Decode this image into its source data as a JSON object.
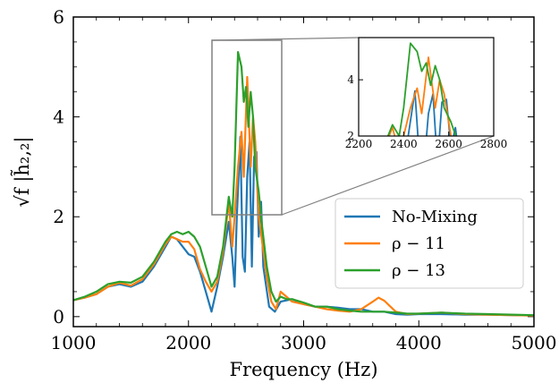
{
  "chart_data": {
    "type": "line",
    "xlabel": "Frequency (Hz)",
    "ylabel": "√f |h̃₂,₂|",
    "xlim": [
      1000,
      5000
    ],
    "ylim": [
      -0.2,
      6
    ],
    "x_ticks": [
      "1000",
      "2000",
      "3000",
      "4000",
      "5000"
    ],
    "y_ticks": [
      "0",
      "2",
      "4",
      "6"
    ],
    "legend_position": "lower-right",
    "series": [
      {
        "name": "No-Mixing",
        "color": "#1f77b4",
        "points": [
          [
            1000,
            0.33
          ],
          [
            1100,
            0.38
          ],
          [
            1200,
            0.45
          ],
          [
            1300,
            0.6
          ],
          [
            1400,
            0.65
          ],
          [
            1500,
            0.6
          ],
          [
            1600,
            0.7
          ],
          [
            1700,
            1.0
          ],
          [
            1800,
            1.4
          ],
          [
            1850,
            1.6
          ],
          [
            1900,
            1.55
          ],
          [
            1950,
            1.4
          ],
          [
            2000,
            1.25
          ],
          [
            2050,
            1.2
          ],
          [
            2100,
            0.9
          ],
          [
            2150,
            0.5
          ],
          [
            2200,
            0.1
          ],
          [
            2250,
            0.6
          ],
          [
            2300,
            1.2
          ],
          [
            2350,
            1.9
          ],
          [
            2380,
            1.2
          ],
          [
            2400,
            0.6
          ],
          [
            2420,
            2.0
          ],
          [
            2450,
            3.6
          ],
          [
            2470,
            1.2
          ],
          [
            2490,
            0.9
          ],
          [
            2510,
            2.8
          ],
          [
            2530,
            3.5
          ],
          [
            2550,
            1.0
          ],
          [
            2570,
            3.2
          ],
          [
            2590,
            3.3
          ],
          [
            2610,
            1.6
          ],
          [
            2630,
            2.3
          ],
          [
            2650,
            1.0
          ],
          [
            2700,
            0.2
          ],
          [
            2750,
            0.1
          ],
          [
            2800,
            0.3
          ],
          [
            2900,
            0.35
          ],
          [
            3000,
            0.25
          ],
          [
            3100,
            0.2
          ],
          [
            3200,
            0.2
          ],
          [
            3300,
            0.18
          ],
          [
            3400,
            0.15
          ],
          [
            3500,
            0.15
          ],
          [
            3600,
            0.1
          ],
          [
            3700,
            0.1
          ],
          [
            3800,
            0.05
          ],
          [
            3900,
            0.04
          ],
          [
            4000,
            0.05
          ],
          [
            4200,
            0.05
          ],
          [
            4400,
            0.04
          ],
          [
            4600,
            0.04
          ],
          [
            4800,
            0.03
          ],
          [
            5000,
            0.02
          ]
        ]
      },
      {
        "name": "ρ − 11",
        "color": "#ff7f0e",
        "points": [
          [
            1000,
            0.33
          ],
          [
            1100,
            0.38
          ],
          [
            1200,
            0.45
          ],
          [
            1300,
            0.6
          ],
          [
            1400,
            0.68
          ],
          [
            1500,
            0.62
          ],
          [
            1600,
            0.75
          ],
          [
            1700,
            1.05
          ],
          [
            1800,
            1.45
          ],
          [
            1850,
            1.6
          ],
          [
            1900,
            1.55
          ],
          [
            1950,
            1.5
          ],
          [
            2000,
            1.5
          ],
          [
            2050,
            1.35
          ],
          [
            2100,
            0.95
          ],
          [
            2150,
            0.7
          ],
          [
            2200,
            0.5
          ],
          [
            2250,
            0.7
          ],
          [
            2300,
            1.3
          ],
          [
            2350,
            2.3
          ],
          [
            2380,
            1.4
          ],
          [
            2400,
            2.0
          ],
          [
            2430,
            3.0
          ],
          [
            2460,
            3.7
          ],
          [
            2480,
            2.8
          ],
          [
            2510,
            4.8
          ],
          [
            2540,
            3.0
          ],
          [
            2560,
            4.0
          ],
          [
            2580,
            3.5
          ],
          [
            2610,
            2.0
          ],
          [
            2640,
            1.5
          ],
          [
            2680,
            0.8
          ],
          [
            2720,
            0.3
          ],
          [
            2760,
            0.15
          ],
          [
            2800,
            0.5
          ],
          [
            2850,
            0.4
          ],
          [
            2900,
            0.3
          ],
          [
            3000,
            0.25
          ],
          [
            3100,
            0.2
          ],
          [
            3200,
            0.15
          ],
          [
            3300,
            0.12
          ],
          [
            3400,
            0.1
          ],
          [
            3500,
            0.15
          ],
          [
            3600,
            0.3
          ],
          [
            3650,
            0.38
          ],
          [
            3700,
            0.32
          ],
          [
            3800,
            0.1
          ],
          [
            3900,
            0.05
          ],
          [
            4000,
            0.06
          ],
          [
            4200,
            0.08
          ],
          [
            4400,
            0.05
          ],
          [
            4600,
            0.04
          ],
          [
            4800,
            0.03
          ],
          [
            5000,
            0.02
          ]
        ]
      },
      {
        "name": "ρ − 13",
        "color": "#2ca02c",
        "points": [
          [
            1000,
            0.33
          ],
          [
            1100,
            0.4
          ],
          [
            1200,
            0.5
          ],
          [
            1300,
            0.65
          ],
          [
            1400,
            0.7
          ],
          [
            1500,
            0.68
          ],
          [
            1600,
            0.8
          ],
          [
            1700,
            1.1
          ],
          [
            1800,
            1.5
          ],
          [
            1850,
            1.65
          ],
          [
            1900,
            1.7
          ],
          [
            1950,
            1.65
          ],
          [
            2000,
            1.7
          ],
          [
            2050,
            1.6
          ],
          [
            2100,
            1.4
          ],
          [
            2150,
            1.0
          ],
          [
            2200,
            0.6
          ],
          [
            2250,
            0.8
          ],
          [
            2300,
            1.4
          ],
          [
            2350,
            2.4
          ],
          [
            2380,
            2.0
          ],
          [
            2400,
            3.0
          ],
          [
            2430,
            5.3
          ],
          [
            2460,
            5.0
          ],
          [
            2480,
            4.3
          ],
          [
            2500,
            4.6
          ],
          [
            2520,
            3.8
          ],
          [
            2540,
            4.5
          ],
          [
            2560,
            4.0
          ],
          [
            2580,
            3.0
          ],
          [
            2610,
            2.5
          ],
          [
            2640,
            1.8
          ],
          [
            2680,
            1.0
          ],
          [
            2720,
            0.5
          ],
          [
            2760,
            0.3
          ],
          [
            2800,
            0.4
          ],
          [
            2850,
            0.35
          ],
          [
            2900,
            0.35
          ],
          [
            3000,
            0.28
          ],
          [
            3100,
            0.2
          ],
          [
            3200,
            0.2
          ],
          [
            3300,
            0.15
          ],
          [
            3400,
            0.12
          ],
          [
            3500,
            0.1
          ],
          [
            3600,
            0.1
          ],
          [
            3700,
            0.1
          ],
          [
            3800,
            0.08
          ],
          [
            3900,
            0.06
          ],
          [
            4000,
            0.06
          ],
          [
            4200,
            0.08
          ],
          [
            4400,
            0.06
          ],
          [
            4600,
            0.05
          ],
          [
            4800,
            0.04
          ],
          [
            5000,
            0.03
          ]
        ]
      }
    ],
    "inset": {
      "xlim": [
        2200,
        2800
      ],
      "ylim": [
        2,
        5.5
      ],
      "x_ticks": [
        "2200",
        "2400",
        "2600",
        "2800"
      ],
      "y_ticks": [
        "2",
        "4"
      ]
    }
  }
}
